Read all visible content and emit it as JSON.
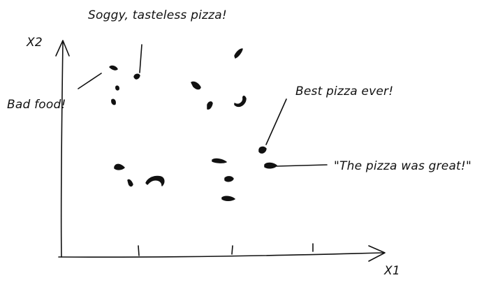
{
  "axes": {
    "x_label": "X1",
    "y_label": "X2"
  },
  "annotations": {
    "soggy": "Soggy, tasteless pizza!",
    "bad_food": "Bad food!",
    "best": "Best pizza ever!",
    "great": "\"The pizza was great!\""
  },
  "colors": {
    "ink": "#111111",
    "background": "#ffffff"
  }
}
